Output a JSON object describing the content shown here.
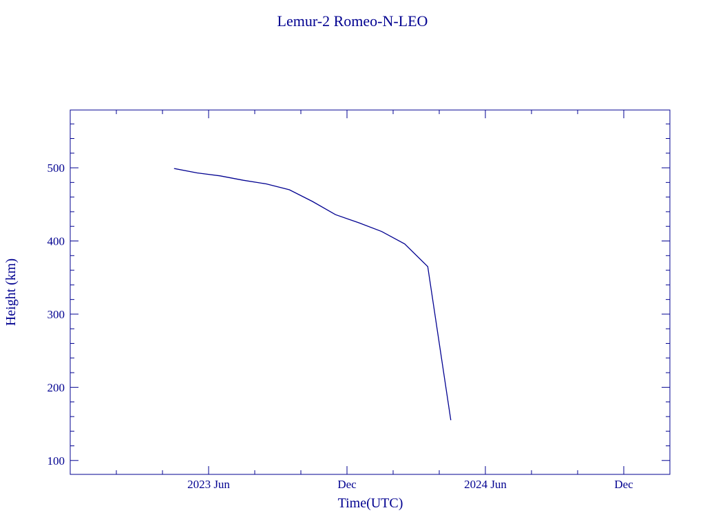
{
  "chart_data": {
    "type": "line",
    "title": "Lemur-2 Romeo-N-LEO",
    "x_label": "Time(UTC)",
    "y_label": "Height (km)",
    "x": [
      "2023-04",
      "2023-05",
      "2023-06",
      "2023-07",
      "2023-08",
      "2023-09",
      "2023-10",
      "2023-11",
      "2023-12",
      "2024-01",
      "2024-02",
      "2024-03",
      "2024-04"
    ],
    "series": [
      {
        "name": "Height",
        "color": "#000090",
        "values": [
          499,
          493,
          489,
          483,
          478,
          470,
          454,
          436,
          425,
          413,
          396,
          365,
          155
        ]
      }
    ],
    "xlim": [
      "2022-12",
      "2025-02"
    ],
    "xticks": [
      {
        "value": "2023-06",
        "label": "2023 Jun"
      },
      {
        "value": "2023-12",
        "label": "Dec"
      },
      {
        "value": "2024-06",
        "label": "2024 Jun"
      },
      {
        "value": "2024-12",
        "label": "Dec"
      }
    ],
    "xminorticks": [
      "2023-02",
      "2023-04",
      "2023-08",
      "2023-10",
      "2024-02",
      "2024-04",
      "2024-08",
      "2024-10"
    ],
    "ylim": [
      81,
      579
    ],
    "yticks": [
      100,
      200,
      300,
      400,
      500
    ],
    "yminorticks": [
      120,
      140,
      160,
      180,
      220,
      240,
      260,
      280,
      320,
      340,
      360,
      380,
      420,
      440,
      460,
      480,
      520,
      540,
      560
    ]
  }
}
